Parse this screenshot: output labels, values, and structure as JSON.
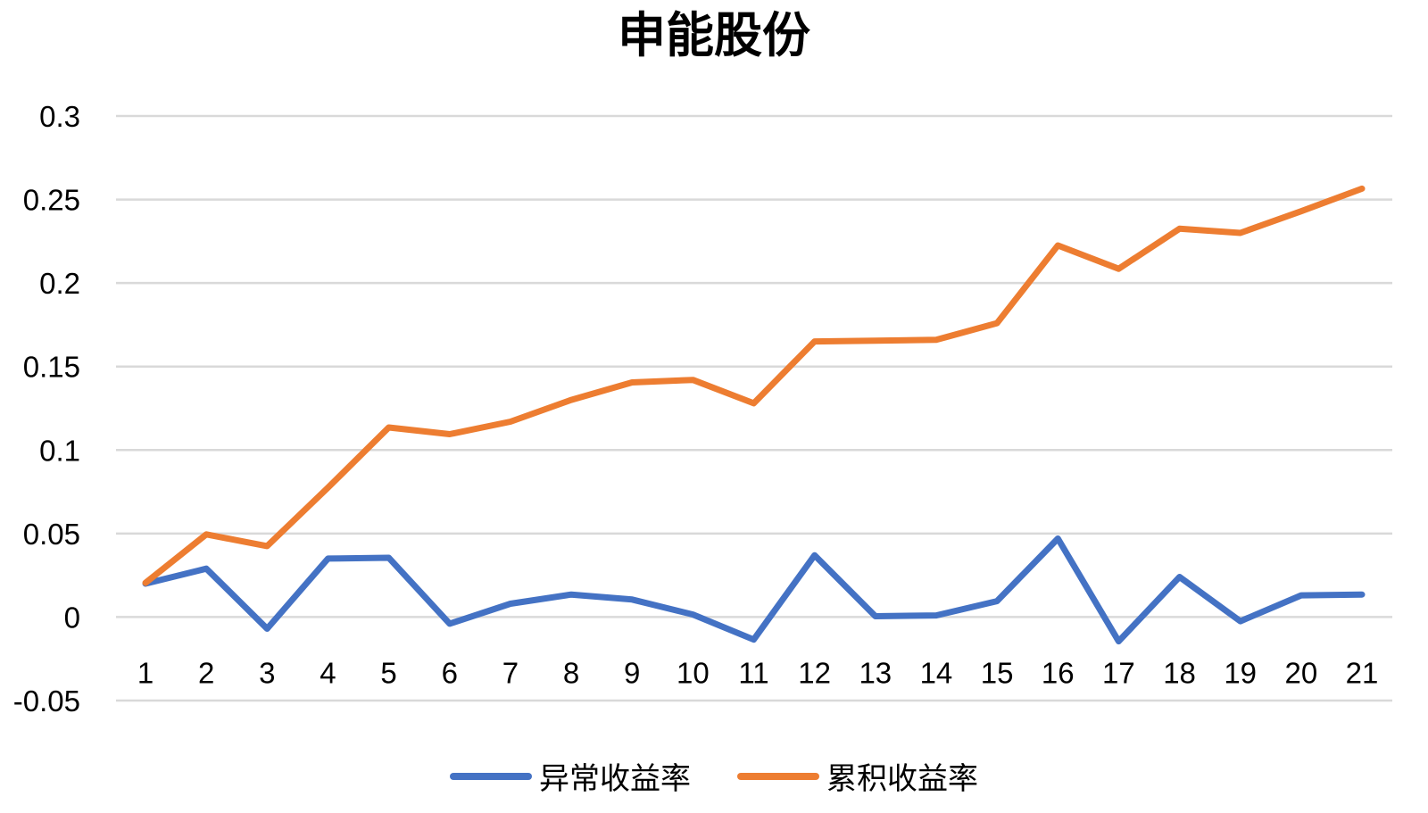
{
  "chart_data": {
    "type": "line",
    "title": "申能股份",
    "xlabel": "",
    "ylabel": "",
    "categories": [
      "1",
      "2",
      "3",
      "4",
      "5",
      "6",
      "7",
      "8",
      "9",
      "10",
      "11",
      "12",
      "13",
      "14",
      "15",
      "16",
      "17",
      "18",
      "19",
      "20",
      "21"
    ],
    "y_ticks": [
      "0.3",
      "0.25",
      "0.2",
      "0.15",
      "0.1",
      "0.05",
      "0",
      "-0.05"
    ],
    "ylim": [
      -0.05,
      0.3
    ],
    "grid": true,
    "legend_position": "bottom",
    "series": [
      {
        "name": "异常收益率",
        "color": "#4472C4",
        "values": [
          0.02,
          0.029,
          -0.007,
          0.035,
          0.0355,
          -0.004,
          0.008,
          0.0135,
          0.0105,
          0.0015,
          -0.0135,
          0.037,
          0.0005,
          0.001,
          0.0095,
          0.047,
          -0.0145,
          0.024,
          -0.0025,
          0.013,
          0.0135
        ]
      },
      {
        "name": "累积收益率",
        "color": "#ED7D31",
        "values": [
          0.0205,
          0.0495,
          0.0425,
          0.0775,
          0.1135,
          0.1095,
          0.117,
          0.13,
          0.1405,
          0.142,
          0.128,
          0.165,
          0.1655,
          0.166,
          0.176,
          0.2225,
          0.2085,
          0.2325,
          0.23,
          0.243,
          0.2565
        ]
      }
    ]
  }
}
